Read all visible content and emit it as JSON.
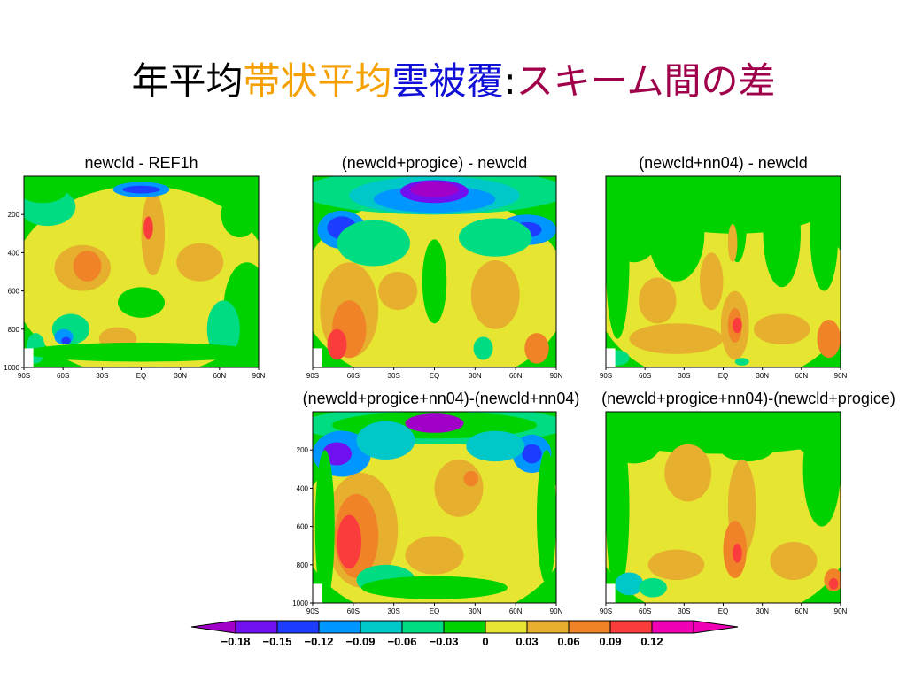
{
  "slide": {
    "title_parts": [
      {
        "text": "年平均",
        "color": "#000000"
      },
      {
        "text": "帯状平均",
        "color": "#F5A000"
      },
      {
        "text": "雲被覆",
        "color": "#1010D8"
      },
      {
        "text": ":",
        "color": "#000000"
      },
      {
        "text": "スキーム間の差",
        "color": "#A0004A"
      }
    ]
  },
  "chart_data": [
    {
      "type": "heatmap",
      "title": "newcld - REF1h",
      "x_ticks": [
        "90S",
        "60S",
        "30S",
        "EQ",
        "30N",
        "60N",
        "90N"
      ],
      "y_ticks": [
        "200",
        "400",
        "600",
        "800",
        "1000"
      ],
      "ylim": [
        1000,
        0
      ]
    },
    {
      "type": "heatmap",
      "title": "(newcld+progice) - newcld",
      "x_ticks": [
        "90S",
        "60S",
        "30S",
        "EQ",
        "30N",
        "60N",
        "90N"
      ],
      "y_ticks": [],
      "ylim": [
        1000,
        0
      ]
    },
    {
      "type": "heatmap",
      "title": "(newcld+nn04) - newcld",
      "x_ticks": [
        "90S",
        "60S",
        "30S",
        "EQ",
        "30N",
        "60N",
        "90N"
      ],
      "y_ticks": [],
      "ylim": [
        1000,
        0
      ]
    },
    {
      "type": "heatmap",
      "title": "(newcld+progice+nn04)-(newcld+nn04)",
      "x_ticks": [
        "90S",
        "60S",
        "30S",
        "EQ",
        "30N",
        "60N",
        "90N"
      ],
      "y_ticks": [
        "200",
        "400",
        "600",
        "800",
        "1000"
      ],
      "ylim": [
        1000,
        0
      ]
    },
    {
      "type": "heatmap",
      "title": "(newcld+progice+nn04)-(newcld+progice)",
      "x_ticks": [
        "90S",
        "60S",
        "30S",
        "EQ",
        "30N",
        "60N",
        "90N"
      ],
      "y_ticks": [],
      "ylim": [
        1000,
        0
      ]
    }
  ],
  "colorbar": {
    "labels": [
      "−0.18",
      "−0.15",
      "−0.12",
      "−0.09",
      "−0.06",
      "−0.03",
      "0",
      "0.03",
      "0.06",
      "0.09",
      "0.12"
    ],
    "colors": [
      "#A000C8",
      "#7010F0",
      "#1E3CFF",
      "#0096FF",
      "#00C8C8",
      "#00DC82",
      "#00D200",
      "#E6E632",
      "#E6AF2D",
      "#F08228",
      "#FA3C3C",
      "#F000B4"
    ]
  }
}
